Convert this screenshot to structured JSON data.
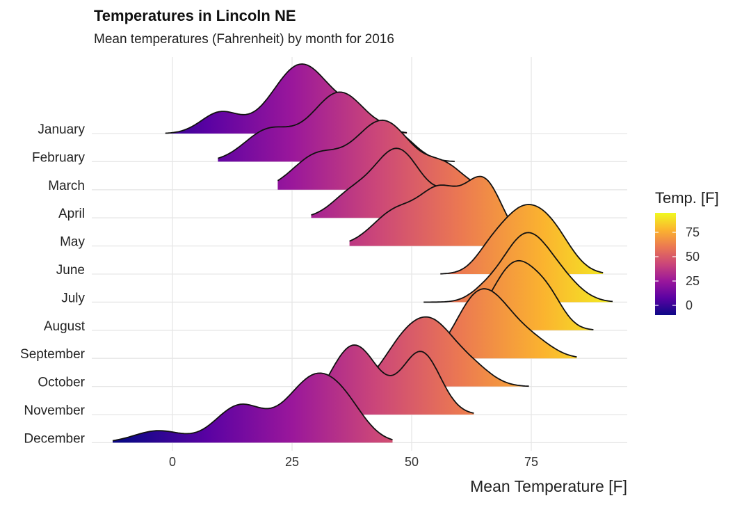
{
  "chart_data": {
    "type": "ridgeline",
    "title": "Temperatures in Lincoln NE",
    "subtitle": "Mean temperatures (Fahrenheit) by month for 2016",
    "xlabel": "Mean Temperature [F]",
    "ylabel": "",
    "xlim": [
      -13,
      93
    ],
    "x_ticks": [
      0,
      25,
      50,
      75
    ],
    "grid": true,
    "categories": [
      "January",
      "February",
      "March",
      "April",
      "May",
      "June",
      "July",
      "August",
      "September",
      "October",
      "November",
      "December"
    ],
    "series": [
      {
        "name": "January",
        "x_range": [
          -1.5,
          49
        ],
        "peaks": [
          [
            10,
            0.3,
            4
          ],
          [
            27,
            1.0,
            6
          ],
          [
            39,
            0.25,
            4
          ]
        ]
      },
      {
        "name": "February",
        "x_range": [
          9.5,
          59
        ],
        "peaks": [
          [
            20,
            0.42,
            5
          ],
          [
            35,
            0.95,
            6
          ],
          [
            47,
            0.3,
            4
          ]
        ]
      },
      {
        "name": "March",
        "x_range": [
          22,
          64
        ],
        "peaks": [
          [
            30,
            0.45,
            5
          ],
          [
            44,
            0.95,
            6
          ],
          [
            57,
            0.3,
            4
          ]
        ]
      },
      {
        "name": "April",
        "x_range": [
          29,
          70
        ],
        "peaks": [
          [
            37,
            0.3,
            4
          ],
          [
            47,
            1.0,
            5
          ],
          [
            60,
            0.42,
            4
          ]
        ]
      },
      {
        "name": "May",
        "x_range": [
          37,
          70
        ],
        "peaks": [
          [
            47,
            0.55,
            5
          ],
          [
            56,
            0.75,
            4
          ],
          [
            65,
            1.0,
            4
          ]
        ]
      },
      {
        "name": "June",
        "x_range": [
          56,
          90
        ],
        "peaks": [
          [
            66,
            0.18,
            3
          ],
          [
            73,
            1.0,
            5
          ],
          [
            80,
            0.45,
            4
          ]
        ]
      },
      {
        "name": "July",
        "x_range": [
          52.5,
          92
        ],
        "peaks": [
          [
            65,
            0.1,
            3
          ],
          [
            74,
            1.0,
            5
          ],
          [
            82,
            0.2,
            4
          ]
        ]
      },
      {
        "name": "August",
        "x_range": [
          65,
          88
        ],
        "peaks": [
          [
            72,
            1.0,
            5
          ],
          [
            79,
            0.25,
            3
          ]
        ]
      },
      {
        "name": "September",
        "x_range": [
          50,
          84.5
        ],
        "peaks": [
          [
            62,
            0.45,
            4
          ],
          [
            67,
            0.9,
            5
          ],
          [
            76,
            0.22,
            4
          ]
        ]
      },
      {
        "name": "October",
        "x_range": [
          39,
          74.5
        ],
        "peaks": [
          [
            47,
            0.35,
            4
          ],
          [
            54,
            0.9,
            5
          ],
          [
            63,
            0.22,
            4
          ]
        ]
      },
      {
        "name": "November",
        "x_range": [
          30,
          63
        ],
        "peaks": [
          [
            38,
            0.9,
            5
          ],
          [
            52,
            0.8,
            4
          ]
        ]
      },
      {
        "name": "December",
        "x_range": [
          -12.5,
          46
        ],
        "peaks": [
          [
            -3,
            0.18,
            5
          ],
          [
            14,
            0.55,
            5
          ],
          [
            30,
            1.0,
            6
          ],
          [
            37,
            0.2,
            4
          ]
        ]
      }
    ],
    "legend": {
      "title": "Temp. [F]",
      "position": "right",
      "ticks": [
        0,
        25,
        50,
        75
      ],
      "range": [
        -10,
        95
      ],
      "palette": "plasma"
    },
    "colors": [
      "#0d0887",
      "#5b02a3",
      "#9a179b",
      "#cb4679",
      "#eb7852",
      "#fbb32f",
      "#f0f921"
    ]
  }
}
